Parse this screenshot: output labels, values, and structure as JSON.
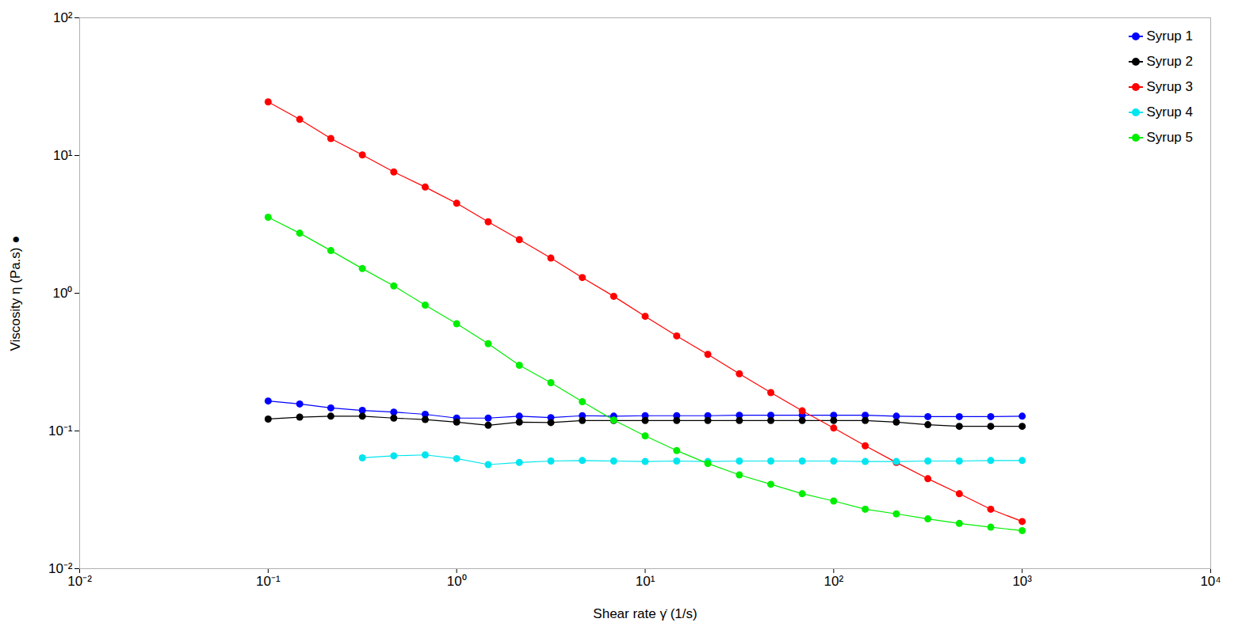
{
  "chart_data": {
    "type": "line",
    "x_label": "Shear rate γ̇ (1/s)",
    "y_label": "Viscosity η (Pa.s) ●",
    "log": true,
    "grid": false,
    "legend": "top-right",
    "marker": "circle",
    "xlim": [
      0.01,
      10000
    ],
    "ylim": [
      0.01,
      100
    ],
    "xticks": [
      {
        "value": 0.01,
        "label": "10⁻²"
      },
      {
        "value": 0.1,
        "label": "10⁻¹"
      },
      {
        "value": 1,
        "label": "10⁰"
      },
      {
        "value": 10,
        "label": "10¹"
      },
      {
        "value": 100,
        "label": "10²"
      },
      {
        "value": 1000,
        "label": "10³"
      },
      {
        "value": 10000,
        "label": "10⁴"
      }
    ],
    "yticks": [
      {
        "value": 0.01,
        "label": "10⁻²"
      },
      {
        "value": 0.1,
        "label": "10⁻¹"
      },
      {
        "value": 1,
        "label": "10⁰"
      },
      {
        "value": 10,
        "label": "10¹"
      },
      {
        "value": 100,
        "label": "10²"
      }
    ],
    "x": [
      0.1,
      0.147,
      0.215,
      0.316,
      0.464,
      0.681,
      1,
      1.47,
      2.15,
      3.16,
      4.64,
      6.81,
      10,
      14.7,
      21.5,
      31.6,
      46.4,
      68.1,
      100,
      147,
      215,
      316,
      464,
      681,
      1000
    ],
    "series": [
      {
        "name": "Syrup 1",
        "color": "#0000ff",
        "values": [
          0.165,
          0.157,
          0.147,
          0.141,
          0.137,
          0.132,
          0.124,
          0.124,
          0.128,
          0.125,
          0.129,
          0.128,
          0.129,
          0.129,
          0.129,
          0.13,
          0.13,
          0.13,
          0.13,
          0.13,
          0.128,
          0.127,
          0.127,
          0.127,
          0.128
        ]
      },
      {
        "name": "Syrup 2",
        "color": "#000000",
        "values": [
          0.122,
          0.126,
          0.128,
          0.128,
          0.124,
          0.121,
          0.116,
          0.11,
          0.116,
          0.115,
          0.119,
          0.119,
          0.119,
          0.119,
          0.119,
          0.119,
          0.119,
          0.119,
          0.119,
          0.119,
          0.116,
          0.111,
          0.108,
          0.108,
          0.108
        ]
      },
      {
        "name": "Syrup 3",
        "color": "#ff0000",
        "values": [
          24.5,
          18.3,
          13.3,
          10.1,
          7.6,
          5.9,
          4.5,
          3.3,
          2.45,
          1.8,
          1.3,
          0.95,
          0.68,
          0.49,
          0.36,
          0.26,
          0.19,
          0.14,
          0.105,
          0.078,
          0.059,
          0.045,
          0.035,
          0.027,
          0.022
        ]
      },
      {
        "name": "Syrup 4",
        "color": "#00e5ee",
        "values": [
          null,
          null,
          null,
          0.0638,
          0.066,
          0.067,
          0.063,
          0.057,
          0.059,
          0.0605,
          0.061,
          0.0605,
          0.06,
          0.0605,
          0.06,
          0.0605,
          0.0605,
          0.0605,
          0.0605,
          0.06,
          0.06,
          0.0605,
          0.0605,
          0.061,
          0.061
        ]
      },
      {
        "name": "Syrup 5",
        "color": "#00ee00",
        "values": [
          3.56,
          2.73,
          2.04,
          1.51,
          1.13,
          0.82,
          0.6,
          0.43,
          0.3,
          0.224,
          0.163,
          0.12,
          0.092,
          0.072,
          0.058,
          0.048,
          0.041,
          0.035,
          0.031,
          0.027,
          0.025,
          0.023,
          0.0213,
          0.02,
          0.0189
        ]
      }
    ]
  }
}
